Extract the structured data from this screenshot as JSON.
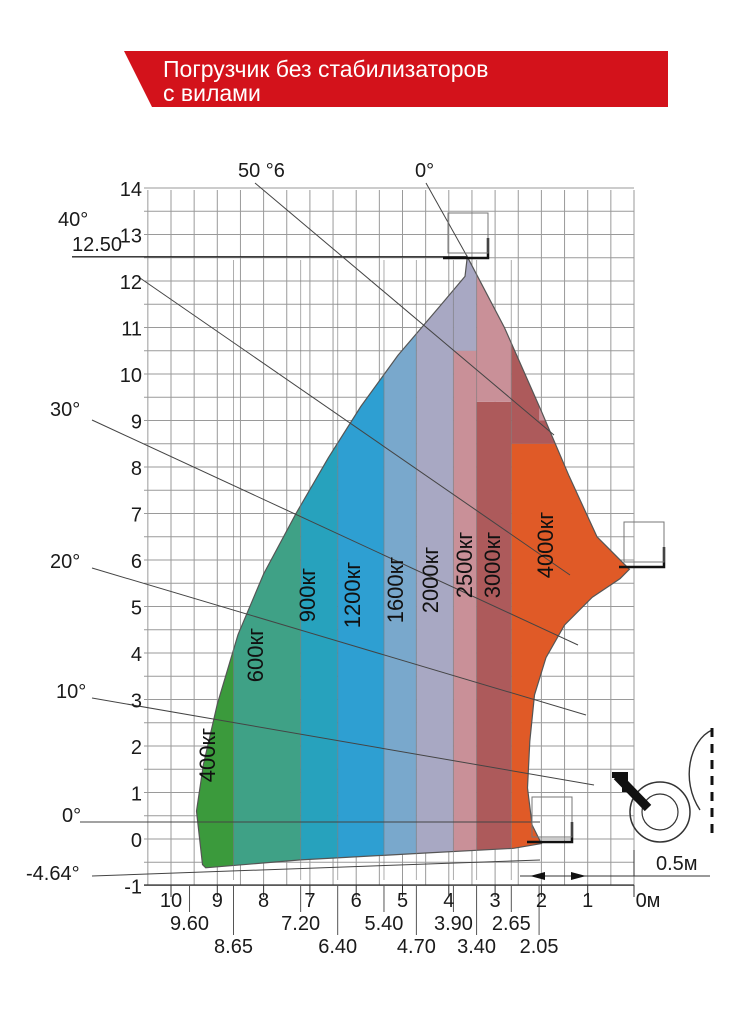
{
  "title": {
    "line1": "Погрузчик без стабилизаторов",
    "line2": "с вилами",
    "color": "#d3121b"
  },
  "chart_data": {
    "type": "load-chart",
    "title": "Погрузчик без стабилизаторов с вилами",
    "y_ticks": [
      "-1",
      "0",
      "1",
      "2",
      "3",
      "4",
      "5",
      "6",
      "7",
      "8",
      "9",
      "10",
      "11",
      "12",
      "13",
      "14"
    ],
    "x_ticks": [
      "10",
      "9",
      "8",
      "7",
      "6",
      "5",
      "4",
      "3",
      "2",
      "1",
      "0м"
    ],
    "x_reach_labels_row1": [
      "9.60",
      "7.20",
      "5.40",
      "3.90",
      "2.65"
    ],
    "x_reach_labels_row2": [
      "8.65",
      "6.40",
      "4.70",
      "3.40",
      "2.05"
    ],
    "max_height_label": "12.50",
    "angle_labels": [
      "50 °6",
      "0°",
      "40°",
      "30°",
      "20°",
      "10°",
      "0°",
      "-4.64°"
    ],
    "scale_label": "0.5м",
    "ylim": [
      -1,
      14
    ],
    "xlim": [
      0,
      10
    ],
    "zones": [
      {
        "name": "400кг",
        "x_from": 9.6,
        "x_to": 8.65,
        "color": "#3b9a3c"
      },
      {
        "name": "600кг",
        "x_from": 8.65,
        "x_to": 7.2,
        "color": "#3fa186"
      },
      {
        "name": "900кг",
        "x_from": 7.2,
        "x_to": 6.4,
        "color": "#27a2bd"
      },
      {
        "name": "1200кг",
        "x_from": 6.4,
        "x_to": 5.4,
        "color": "#2e9fd2"
      },
      {
        "name": "1600кг",
        "x_from": 5.4,
        "x_to": 4.7,
        "color": "#79a8cc"
      },
      {
        "name": "2000кг",
        "x_from": 4.7,
        "x_to": 3.9,
        "color": "#a8a8c3"
      },
      {
        "name": "2500кг",
        "x_from": 3.9,
        "x_to": 3.4,
        "color": "#c99098"
      },
      {
        "name": "3000кг",
        "x_from": 3.4,
        "x_to": 2.65,
        "color": "#ad5a5b"
      },
      {
        "name": "4000кг",
        "x_from": 2.65,
        "x_to": 0,
        "color": "#e05a27"
      }
    ]
  }
}
